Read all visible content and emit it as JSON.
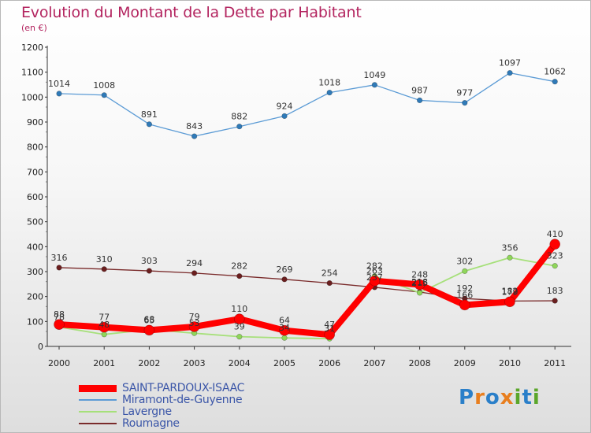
{
  "header": {
    "title": "Evolution du Montant de la Dette par Habitant",
    "subtitle": "(en €)"
  },
  "legend": [
    {
      "label": "SAINT-PARDOUX-ISAAC",
      "color": "#ff0000"
    },
    {
      "label": "Miramont-de-Guyenne",
      "color": "#5b9bd5"
    },
    {
      "label": "Lavergne",
      "color": "#a6e07a"
    },
    {
      "label": "Roumagne",
      "color": "#7a2b2b"
    }
  ],
  "logo": {
    "letters": [
      "P",
      "r",
      "o",
      "x",
      "i",
      "t",
      "i"
    ],
    "colors": [
      "#2a7fc9",
      "#e87e1e",
      "#2a7fc9",
      "#e87e1e",
      "#5aa62a",
      "#2a7fc9",
      "#5aa62a"
    ]
  },
  "chart_data": {
    "type": "line",
    "title": "Evolution du Montant de la Dette par Habitant",
    "subtitle": "(en €)",
    "x": [
      "2000",
      "2001",
      "2002",
      "2003",
      "2004",
      "2005",
      "2006",
      "2007",
      "2008",
      "2009",
      "2010",
      "2011"
    ],
    "ylim": [
      0,
      1200
    ],
    "yticks": [
      "0",
      "100",
      "200",
      "300",
      "400",
      "500",
      "600",
      "700",
      "800",
      "900",
      "1000",
      "1100",
      "1200"
    ],
    "grid": false,
    "legend_position": "bottom-left",
    "series": [
      {
        "name": "Miramont-de-Guyenne",
        "color": "#5b9bd5",
        "marker": "#2f7ab8",
        "values": [
          1014,
          1008,
          891,
          843,
          882,
          924,
          1018,
          1049,
          987,
          977,
          1097,
          1062
        ],
        "labels": [
          "1014",
          "1008",
          "891",
          "843",
          "882",
          "924",
          "1018",
          "1049",
          "987",
          "977",
          "1097",
          "1062"
        ]
      },
      {
        "name": "Roumagne",
        "color": "#7a2b2b",
        "marker": "#6b1f1f",
        "values": [
          316,
          310,
          303,
          294,
          282,
          269,
          254,
          237,
          218,
          192,
          182,
          183
        ],
        "labels": [
          "316",
          "310",
          "303",
          "294",
          "282",
          "269",
          "254",
          "237",
          "218",
          "192",
          "182",
          "183"
        ]
      },
      {
        "name": "Lavergne",
        "color": "#a6e07a",
        "marker": "#8fd65a",
        "values": [
          78,
          48,
          68,
          53,
          39,
          34,
          31,
          282,
          215,
          302,
          356,
          323
        ],
        "labels": [
          "78",
          "48",
          "68",
          "53",
          "39",
          "34",
          "31",
          "282",
          "215",
          "302",
          "356",
          "323"
        ]
      },
      {
        "name": "SAINT-PARDOUX-ISAAC",
        "color": "#ff0000",
        "marker": "#ff0000",
        "values": [
          88,
          77,
          65,
          79,
          110,
          64,
          47,
          263,
          248,
          166,
          179,
          410
        ],
        "labels": [
          "88",
          "77",
          "65",
          "79",
          "110",
          "64",
          "47",
          "263",
          "248",
          "166",
          "179",
          "410"
        ]
      }
    ]
  }
}
